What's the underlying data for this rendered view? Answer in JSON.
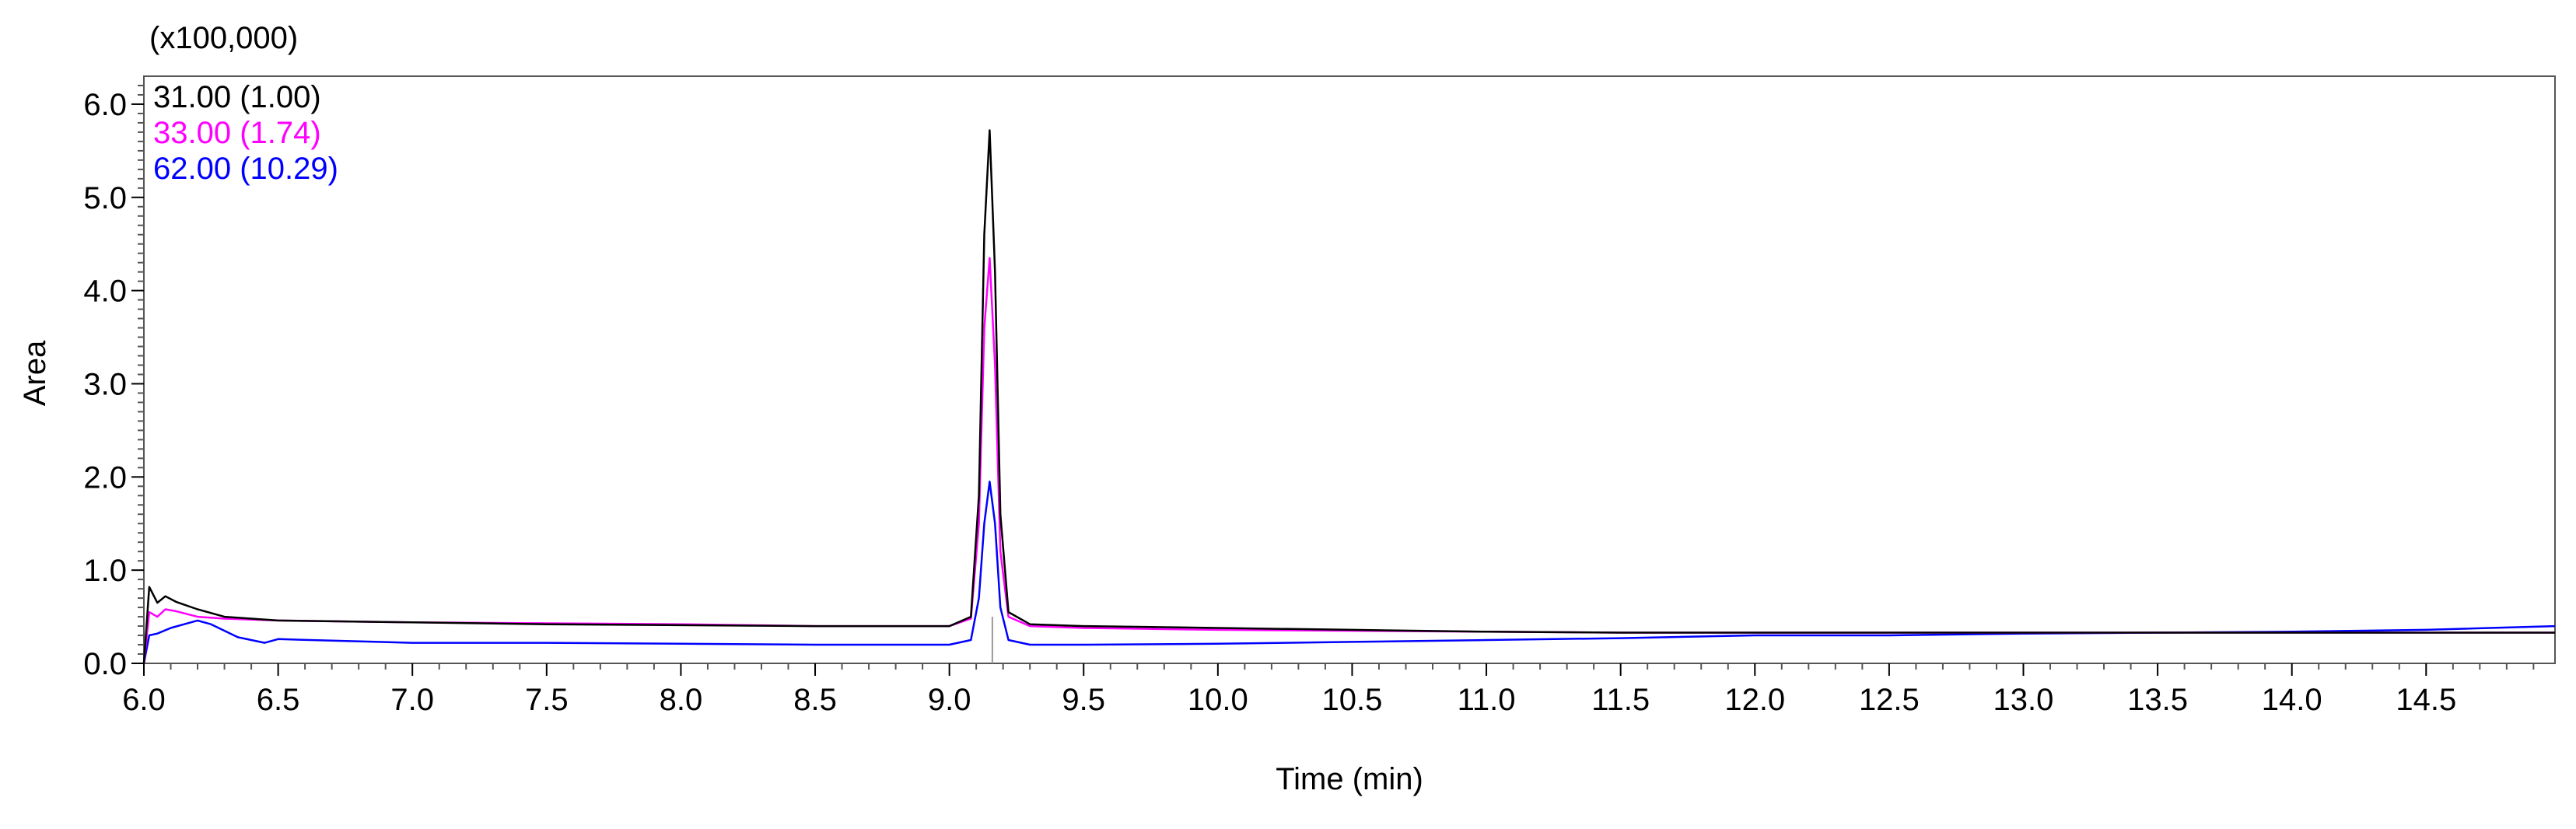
{
  "chart_data": {
    "type": "line",
    "title": "",
    "xlabel": "Time (min)",
    "ylabel": "Area",
    "y_multiplier_label": "(x100,000)",
    "xlim": [
      6.0,
      14.98
    ],
    "ylim": [
      0.0,
      6.3
    ],
    "x_ticks": [
      6.0,
      6.5,
      7.0,
      7.5,
      8.0,
      8.5,
      9.0,
      9.5,
      10.0,
      10.5,
      11.0,
      11.5,
      12.0,
      12.5,
      13.0,
      13.5,
      14.0,
      14.5
    ],
    "x_tick_labels": [
      "6.0",
      "6.5",
      "7.0",
      "7.5",
      "8.0",
      "8.5",
      "9.0",
      "9.5",
      "10.0",
      "10.5",
      "11.0",
      "11.5",
      "12.0",
      "12.5",
      "13.0",
      "13.5",
      "14.0",
      "14.5"
    ],
    "y_ticks": [
      0.0,
      1.0,
      2.0,
      3.0,
      4.0,
      5.0,
      6.0
    ],
    "y_tick_labels": [
      "0.0",
      "1.0",
      "2.0",
      "3.0",
      "4.0",
      "5.0",
      "6.0"
    ],
    "legend_position": "top-left",
    "grid": false,
    "series": [
      {
        "name": "31.00 (1.00)",
        "color": "#000000",
        "x": [
          6.0,
          6.02,
          6.05,
          6.08,
          6.12,
          6.2,
          6.3,
          6.5,
          7.0,
          7.5,
          8.0,
          8.5,
          9.0,
          9.08,
          9.11,
          9.13,
          9.15,
          9.17,
          9.19,
          9.22,
          9.3,
          9.5,
          10.0,
          10.5,
          11.0,
          11.5,
          12.0,
          12.5,
          13.0,
          13.5,
          14.0,
          14.5,
          14.98
        ],
        "y": [
          0.0,
          0.82,
          0.65,
          0.72,
          0.66,
          0.58,
          0.5,
          0.46,
          0.44,
          0.42,
          0.41,
          0.4,
          0.4,
          0.5,
          1.8,
          4.6,
          5.72,
          4.2,
          1.6,
          0.55,
          0.42,
          0.4,
          0.38,
          0.36,
          0.34,
          0.33,
          0.33,
          0.33,
          0.33,
          0.33,
          0.33,
          0.33,
          0.33
        ]
      },
      {
        "name": "33.00 (1.74)",
        "color": "#ff00ff",
        "x": [
          6.0,
          6.02,
          6.05,
          6.08,
          6.12,
          6.2,
          6.3,
          6.5,
          7.0,
          7.5,
          8.0,
          8.5,
          9.0,
          9.08,
          9.11,
          9.13,
          9.15,
          9.17,
          9.19,
          9.22,
          9.3,
          9.5,
          10.0,
          10.5,
          11.0,
          11.5,
          12.0,
          12.5,
          13.0,
          13.5,
          14.0,
          14.5,
          14.98
        ],
        "y": [
          0.0,
          0.55,
          0.5,
          0.58,
          0.56,
          0.5,
          0.48,
          0.46,
          0.44,
          0.43,
          0.42,
          0.4,
          0.4,
          0.48,
          1.5,
          3.6,
          4.35,
          3.2,
          1.2,
          0.5,
          0.4,
          0.38,
          0.36,
          0.35,
          0.34,
          0.33,
          0.33,
          0.33,
          0.33,
          0.33,
          0.33,
          0.33,
          0.33
        ]
      },
      {
        "name": "62.00 (10.29)",
        "color": "#0000ff",
        "x": [
          6.0,
          6.02,
          6.05,
          6.1,
          6.15,
          6.2,
          6.25,
          6.35,
          6.45,
          6.5,
          7.0,
          7.5,
          8.0,
          8.5,
          9.0,
          9.08,
          9.11,
          9.13,
          9.15,
          9.17,
          9.19,
          9.22,
          9.3,
          9.5,
          10.0,
          10.5,
          11.0,
          11.5,
          12.0,
          12.5,
          13.0,
          13.5,
          14.0,
          14.5,
          14.98
        ],
        "y": [
          0.0,
          0.3,
          0.32,
          0.38,
          0.42,
          0.46,
          0.42,
          0.28,
          0.22,
          0.26,
          0.22,
          0.22,
          0.21,
          0.2,
          0.2,
          0.25,
          0.7,
          1.5,
          1.95,
          1.5,
          0.6,
          0.25,
          0.2,
          0.2,
          0.21,
          0.23,
          0.25,
          0.27,
          0.3,
          0.3,
          0.32,
          0.33,
          0.34,
          0.36,
          0.4
        ]
      }
    ]
  }
}
